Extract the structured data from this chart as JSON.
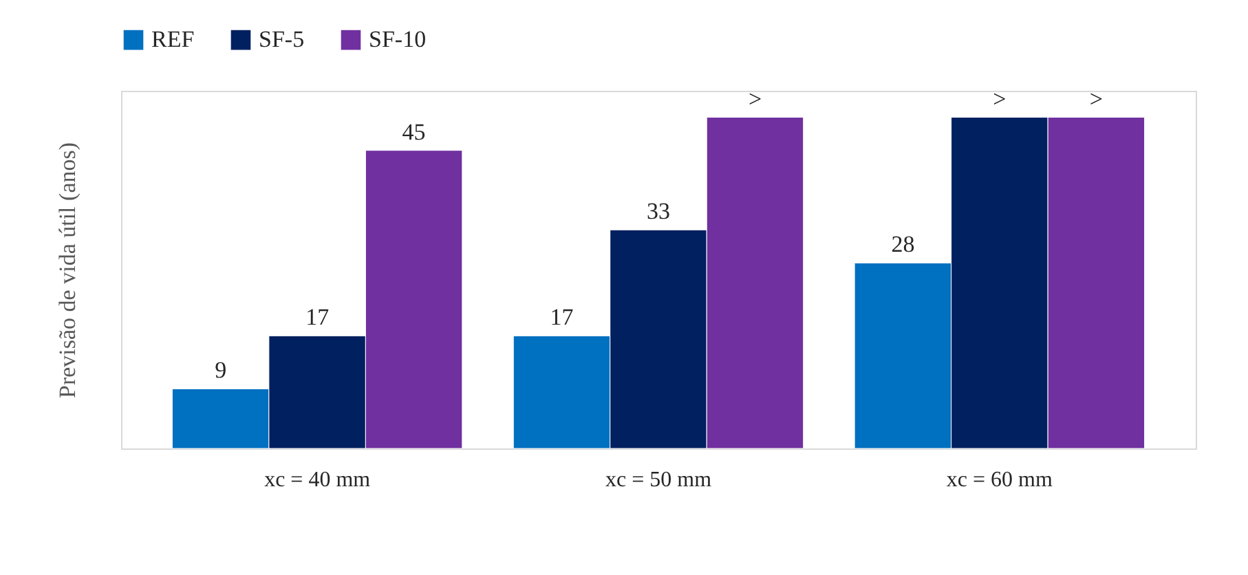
{
  "chart_data": {
    "type": "bar",
    "ylabel": "Previsão de vida útil (anos)",
    "categories": [
      "xc = 40 mm",
      "xc = 50 mm",
      "xc = 60 mm"
    ],
    "series": [
      {
        "name": "REF",
        "color": "#0070c0",
        "values": [
          9,
          17,
          28
        ],
        "value_labels": [
          "9",
          "17",
          "28"
        ]
      },
      {
        "name": "SF-5",
        "color": "#002060",
        "values": [
          17,
          33,
          50
        ],
        "value_labels": [
          "17",
          "33",
          ">"
        ]
      },
      {
        "name": "SF-10",
        "color": "#7030a0",
        "values": [
          45,
          50,
          50
        ],
        "value_labels": [
          "45",
          ">",
          ">"
        ]
      }
    ],
    "legend": "top",
    "grid": false
  }
}
